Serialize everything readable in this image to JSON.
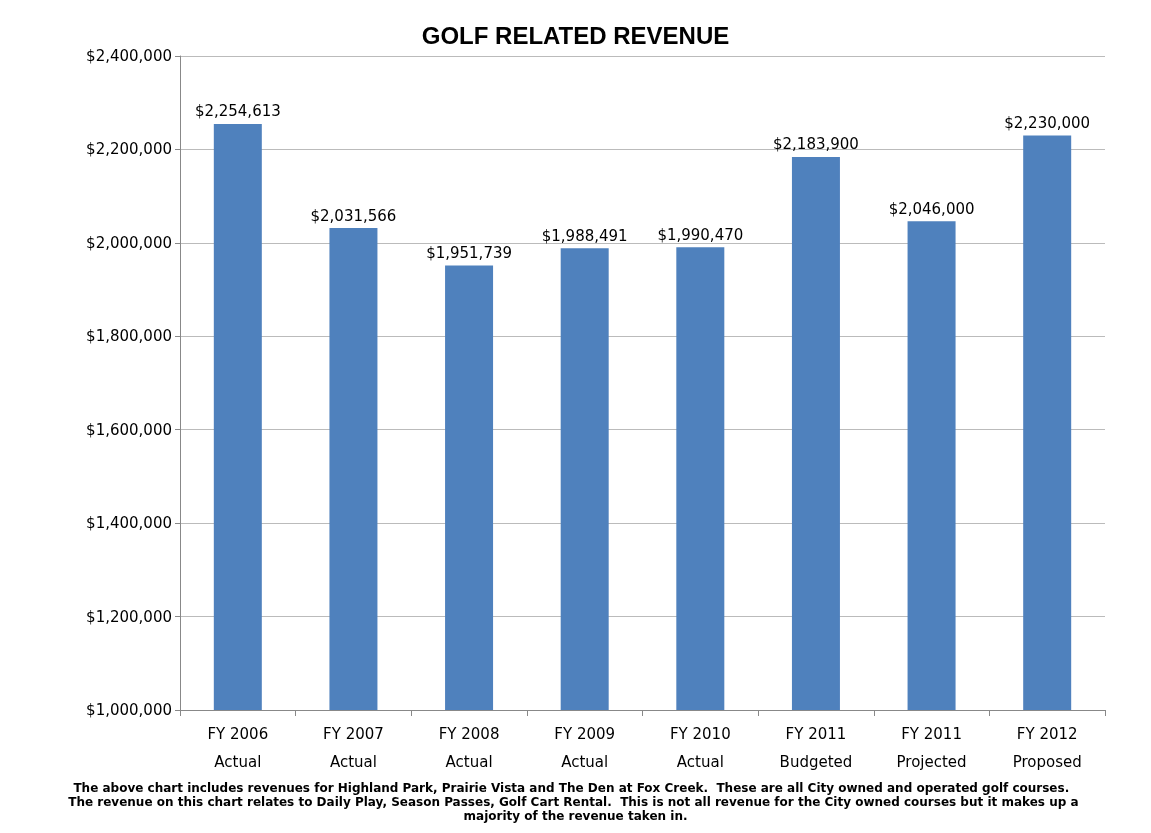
{
  "chart_data": {
    "type": "bar",
    "title": "GOLF RELATED REVENUE",
    "categories": [
      "FY 2006\nActual",
      "FY 2007\nActual",
      "FY 2008\nActual",
      "FY 2009\nActual",
      "FY 2010\nActual",
      "FY 2011\nBudgeted",
      "FY 2011\nProjected",
      "FY 2012\nProposed"
    ],
    "values": [
      2254613,
      2031566,
      1951739,
      1988491,
      1990470,
      2183900,
      2046000,
      2230000
    ],
    "value_labels": [
      "$2,254,613",
      "$2,031,566",
      "$1,951,739",
      "$1,988,491",
      "$1,990,470",
      "$2,183,900",
      "$2,046,000",
      "$2,230,000"
    ],
    "color": "#4f81bd",
    "ylim": [
      1000000,
      2400000
    ],
    "yticks": [
      {
        "value": 1000000,
        "label": "$1,000,000"
      },
      {
        "value": 1200000,
        "label": "$1,200,000"
      },
      {
        "value": 1400000,
        "label": "$1,400,000"
      },
      {
        "value": 1600000,
        "label": "$1,600,000"
      },
      {
        "value": 1800000,
        "label": "$1,800,000"
      },
      {
        "value": 2000000,
        "label": "$2,000,000"
      },
      {
        "value": 2200000,
        "label": "$2,200,000"
      },
      {
        "value": 2400000,
        "label": "$2,400,000"
      }
    ],
    "grid": "y",
    "annotations": [
      "The above chart includes revenues for Highland Park, Prairie Vista and The Den at Fox Creek.  These are all City owned and operated golf courses.  The revenue on this chart relates to Daily Play, Season Passes, Golf Cart Rental.  This is not all revenue for the City owned courses but it makes up a majority of the revenue taken in."
    ]
  }
}
